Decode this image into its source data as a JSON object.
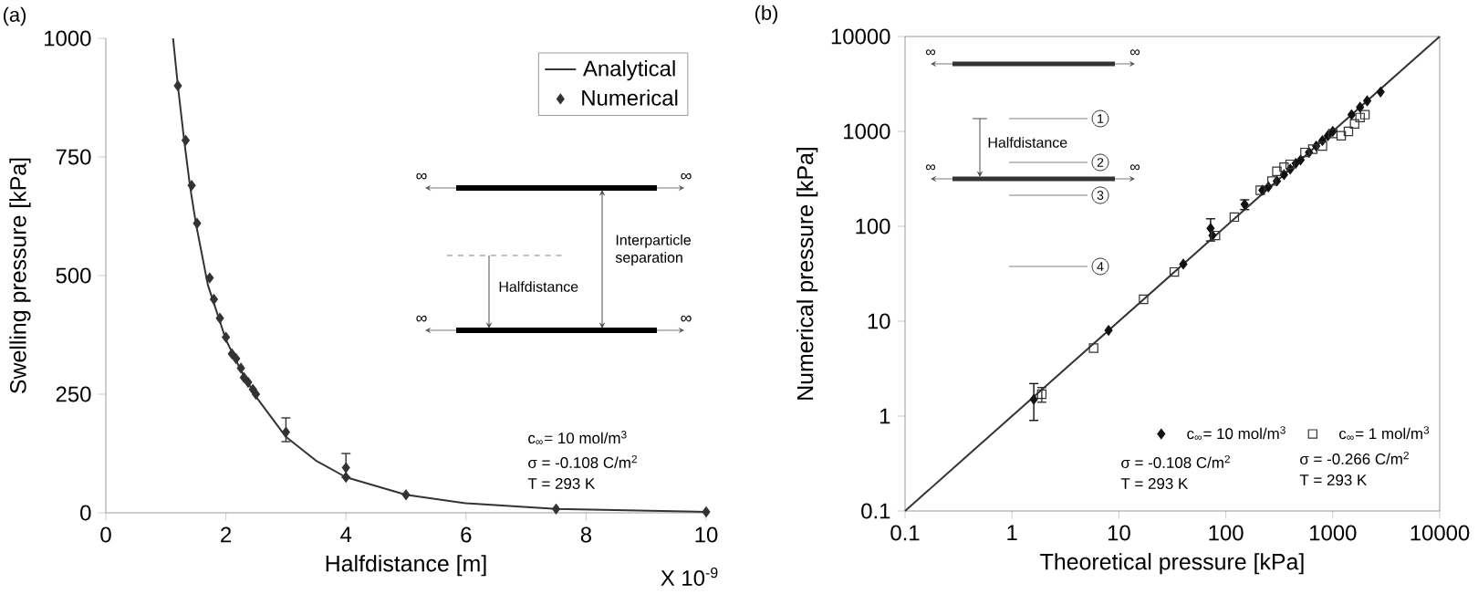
{
  "chart_data": [
    {
      "type": "line",
      "xlabel": "Halfdistance [m]",
      "ylabel": "Swelling pressure [kPa]",
      "xlim": [
        0,
        10
      ],
      "xticks": [
        0,
        2,
        4,
        6,
        8,
        10
      ],
      "ylim": [
        0,
        1000
      ],
      "yticks": [
        0,
        250,
        500,
        750,
        1000
      ],
      "legend": "top right",
      "series": [
        {
          "name": "Analytical",
          "type": "line",
          "color": "#333333",
          "marker": "none",
          "x": [
            1.12,
            1.2,
            1.3,
            1.4,
            1.5,
            1.7,
            2.0,
            2.25,
            2.5,
            3.0,
            3.5,
            4.0,
            5.0,
            6.0,
            7.5,
            10.0
          ],
          "values": [
            1000,
            900,
            790,
            690,
            610,
            480,
            365,
            300,
            245,
            160,
            110,
            75,
            38,
            20,
            8,
            2
          ]
        },
        {
          "name": "Numerical",
          "type": "scatter",
          "color": "#333333",
          "marker": "diamond",
          "x": [
            1.2,
            1.33,
            1.43,
            1.52,
            1.73,
            1.8,
            1.9,
            2.0,
            2.1,
            2.17,
            2.25,
            2.3,
            2.37,
            2.45,
            2.5,
            3.0,
            4.0,
            4.0,
            5.0,
            7.5,
            10.0
          ],
          "values": [
            900,
            785,
            690,
            610,
            495,
            450,
            410,
            370,
            335,
            325,
            305,
            285,
            275,
            260,
            250,
            170,
            95,
            75,
            38,
            8,
            2
          ],
          "errors": [
            null,
            null,
            null,
            null,
            null,
            null,
            null,
            null,
            null,
            null,
            null,
            null,
            null,
            null,
            null,
            [
              150,
              200
            ],
            [
              75,
              125
            ],
            null,
            null,
            null,
            null
          ]
        }
      ],
      "annotations": [
        "(a)",
        "X 10$^{-9}$",
        "c$_{∞}$= 10 mol/m$^{3}$",
        "σ = -0.108 C/m$^{2}$",
        "T = 293 K",
        "Interparticle separation",
        "Halfdistance",
        "∞",
        "∞",
        "∞",
        "∞"
      ]
    },
    {
      "type": "scatter",
      "xlabel": "Theoretical pressure [kPa]",
      "ylabel": "Numerical pressure [kPa]",
      "log": "xy",
      "xlim": [
        0.1,
        10000
      ],
      "xticks": [
        0.1,
        1,
        10,
        100,
        1000,
        10000
      ],
      "ylim": [
        0.1,
        10000
      ],
      "yticks": [
        0.1,
        1,
        10,
        100,
        1000,
        10000
      ],
      "legend": "bottom right",
      "series": [
        {
          "name": "c$_{∞}$= 10 mol/m$^{3}$",
          "color": "#111111",
          "marker": "diamond",
          "x": [
            1.6,
            8,
            40,
            72,
            75,
            150,
            220,
            250,
            300,
            350,
            400,
            450,
            500,
            600,
            700,
            800,
            900,
            1000,
            1500,
            1800,
            2100,
            2800
          ],
          "values": [
            1.5,
            8,
            40,
            95,
            80,
            170,
            240,
            260,
            300,
            350,
            400,
            460,
            500,
            600,
            700,
            800,
            900,
            1000,
            1500,
            1800,
            2100,
            2600
          ],
          "errors": [
            [
              0.9,
              2.2
            ],
            null,
            null,
            [
              70,
              120
            ],
            null,
            [
              150,
              190
            ],
            null,
            null,
            null,
            null,
            null,
            null,
            null,
            null,
            null,
            null,
            null,
            null,
            null,
            null,
            null,
            null
          ]
        },
        {
          "name": "c$_{∞}$= 1 mol/m$^{3}$",
          "color": "#333333",
          "marker": "square",
          "x": [
            1.9,
            5.8,
            17,
            33,
            80,
            120,
            210,
            270,
            300,
            350,
            400,
            550,
            650,
            800,
            1000,
            1200,
            1400,
            1600,
            1800,
            2000
          ],
          "values": [
            1.7,
            5.2,
            17,
            33,
            80,
            125,
            240,
            300,
            380,
            420,
            450,
            600,
            650,
            700,
            950,
            900,
            1000,
            1200,
            1400,
            1500
          ],
          "errors": [
            [
              1.4,
              2.0
            ],
            null,
            null,
            null,
            null,
            null,
            null,
            null,
            null,
            null,
            null,
            null,
            null,
            null,
            null,
            null,
            null,
            null,
            null,
            null
          ]
        },
        {
          "type": "line",
          "color": "#333333",
          "marker": "none",
          "x": [
            0.1,
            10000
          ],
          "values": [
            0.1,
            10000
          ]
        }
      ],
      "annotations": [
        "(b)",
        "Halfdistance",
        "1",
        "2",
        "3",
        "4",
        "∞",
        "∞",
        "∞",
        "∞",
        "σ = -0.108 C/m$^{2}$",
        "T = 293 K",
        "σ = -0.266 C/m$^{2}$",
        "T = 293 K"
      ]
    }
  ]
}
